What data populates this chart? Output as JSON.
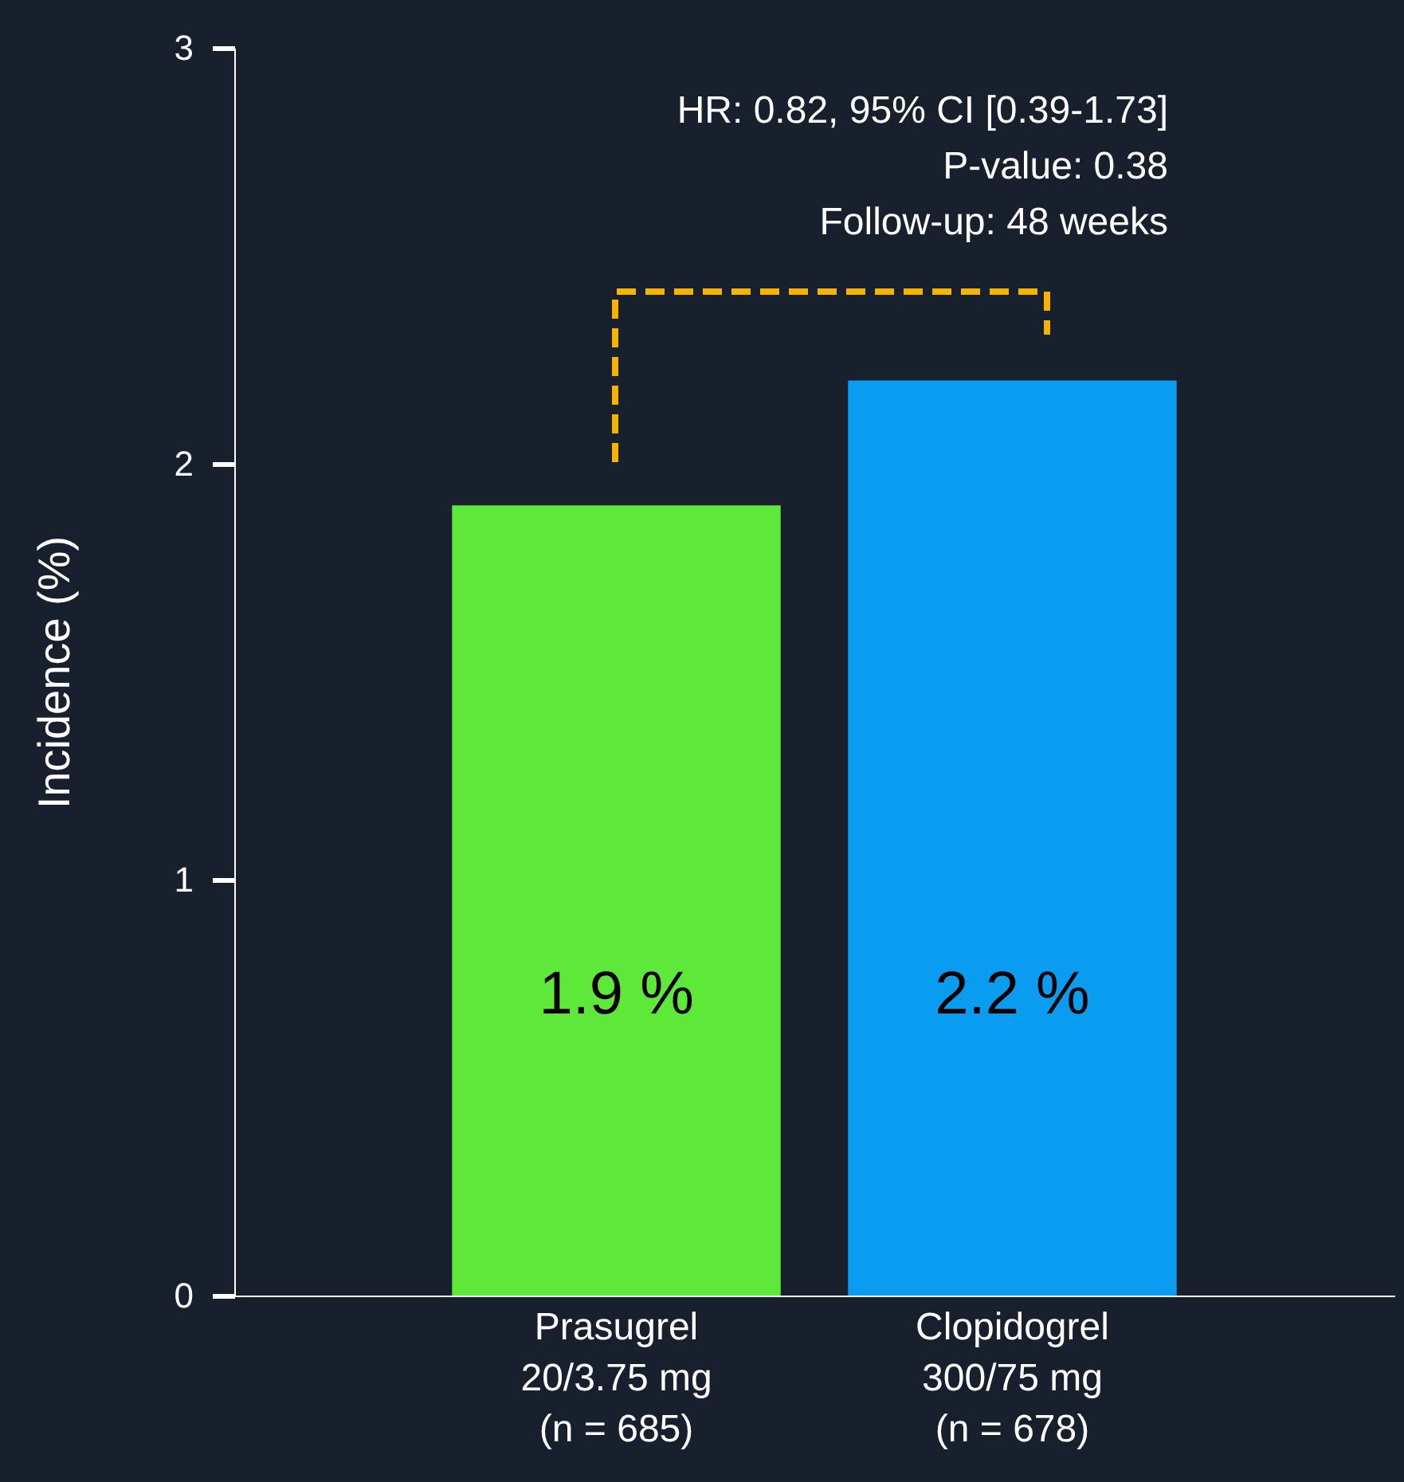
{
  "chart_data": {
    "type": "bar",
    "ylabel": "Incidence (%)",
    "categories": [
      "Prasugrel\n20/3.75 mg\n(n = 685)",
      "Clopidogrel\n300/75 mg\n(n = 678)"
    ],
    "values": [
      1.9,
      2.2
    ],
    "colors": [
      "#5ee83a",
      "#0a9cf0"
    ],
    "value_labels": [
      "1.9 %",
      "2.2 %"
    ],
    "ylim": [
      0,
      3
    ],
    "yticks": [
      0,
      1,
      2,
      3
    ],
    "grid": false,
    "annotations": [
      "HR: 0.82, 95% CI [0.39-1.73]",
      "P-value: 0.38",
      "Follow-up: 48 weeks"
    ]
  }
}
